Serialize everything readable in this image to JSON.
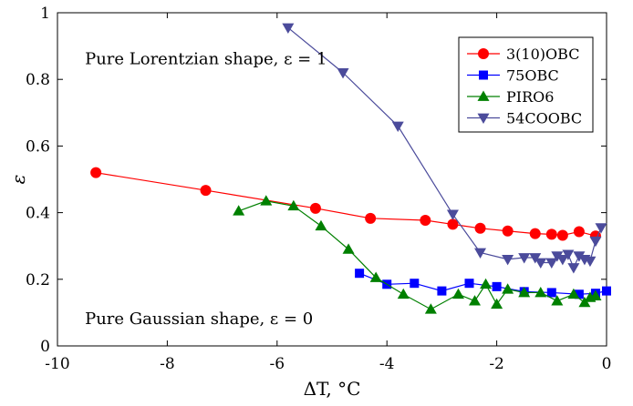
{
  "chart_data": {
    "type": "line",
    "xlabel": "ΔT, °C",
    "ylabel": "ε",
    "xlim": [
      -10,
      0
    ],
    "ylim": [
      0,
      1
    ],
    "xticks": [
      -10,
      -8,
      -6,
      -4,
      -2,
      0
    ],
    "yticks": [
      0,
      0.2,
      0.4,
      0.6,
      0.8,
      1
    ],
    "xtick_labels": [
      "-10",
      "-8",
      "-6",
      "-4",
      "-2",
      "0"
    ],
    "ytick_labels": [
      "0",
      "0.2",
      "0.4",
      "0.6",
      "0.8",
      "1"
    ],
    "grid": false,
    "legend_position": "top-right",
    "annotations": [
      {
        "text": "Pure Lorentzian shape, ε = 1",
        "x": -9.5,
        "y": 0.845
      },
      {
        "text": "Pure Gaussian shape, ε = 0",
        "x": -9.5,
        "y": 0.065
      }
    ],
    "series": [
      {
        "name": "3(10)OBC",
        "color": "#ff0000",
        "marker": "circle",
        "points": [
          [
            -9.3,
            0.52
          ],
          [
            -7.3,
            0.467
          ],
          [
            -5.3,
            0.413
          ],
          [
            -4.3,
            0.383
          ],
          [
            -3.3,
            0.377
          ],
          [
            -2.8,
            0.365
          ],
          [
            -2.3,
            0.353
          ],
          [
            -1.8,
            0.345
          ],
          [
            -1.3,
            0.337
          ],
          [
            -1.0,
            0.335
          ],
          [
            -0.8,
            0.332
          ],
          [
            -0.5,
            0.343
          ],
          [
            -0.2,
            0.33
          ]
        ]
      },
      {
        "name": "75OBC",
        "color": "#0000ff",
        "marker": "square",
        "points": [
          [
            -4.5,
            0.218
          ],
          [
            -4.0,
            0.185
          ],
          [
            -3.5,
            0.188
          ],
          [
            -3.0,
            0.165
          ],
          [
            -2.5,
            0.188
          ],
          [
            -2.0,
            0.178
          ],
          [
            -1.5,
            0.163
          ],
          [
            -1.0,
            0.16
          ],
          [
            -0.5,
            0.155
          ],
          [
            -0.2,
            0.158
          ],
          [
            0.0,
            0.165
          ]
        ]
      },
      {
        "name": "PIRO6",
        "color": "#008000",
        "marker": "triangle-up",
        "points": [
          [
            -6.7,
            0.405
          ],
          [
            -6.2,
            0.435
          ],
          [
            -5.7,
            0.42
          ],
          [
            -5.2,
            0.36
          ],
          [
            -4.7,
            0.29
          ],
          [
            -4.2,
            0.205
          ],
          [
            -3.7,
            0.155
          ],
          [
            -3.2,
            0.11
          ],
          [
            -2.7,
            0.155
          ],
          [
            -2.4,
            0.135
          ],
          [
            -2.2,
            0.185
          ],
          [
            -2.0,
            0.125
          ],
          [
            -1.8,
            0.17
          ],
          [
            -1.5,
            0.16
          ],
          [
            -1.2,
            0.16
          ],
          [
            -0.9,
            0.135
          ],
          [
            -0.6,
            0.155
          ],
          [
            -0.4,
            0.13
          ],
          [
            -0.3,
            0.145
          ],
          [
            -0.2,
            0.15
          ]
        ]
      },
      {
        "name": "54COOBC",
        "color": "#4b4b9b",
        "marker": "triangle-down",
        "points": [
          [
            -5.8,
            0.955
          ],
          [
            -4.8,
            0.82
          ],
          [
            -3.8,
            0.66
          ],
          [
            -2.8,
            0.395
          ],
          [
            -2.3,
            0.28
          ],
          [
            -1.8,
            0.26
          ],
          [
            -1.5,
            0.265
          ],
          [
            -1.3,
            0.265
          ],
          [
            -1.2,
            0.25
          ],
          [
            -1.0,
            0.25
          ],
          [
            -0.9,
            0.27
          ],
          [
            -0.8,
            0.26
          ],
          [
            -0.7,
            0.275
          ],
          [
            -0.6,
            0.235
          ],
          [
            -0.5,
            0.27
          ],
          [
            -0.4,
            0.26
          ],
          [
            -0.3,
            0.255
          ],
          [
            -0.2,
            0.315
          ],
          [
            -0.1,
            0.355
          ]
        ]
      }
    ]
  }
}
